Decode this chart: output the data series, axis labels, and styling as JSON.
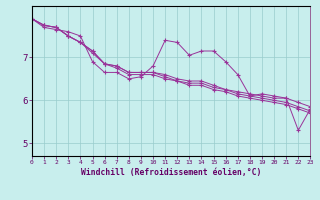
{
  "xlabel": "Windchill (Refroidissement éolien,°C)",
  "bg_color": "#c8eeed",
  "line_color": "#993399",
  "grid_color": "#99cccc",
  "axis_color": "#660066",
  "spine_color": "#996699",
  "x_ticks": [
    0,
    1,
    2,
    3,
    4,
    5,
    6,
    7,
    8,
    9,
    10,
    11,
    12,
    13,
    14,
    15,
    16,
    17,
    18,
    19,
    20,
    21,
    22,
    23
  ],
  "y_ticks": [
    5,
    6,
    7
  ],
  "xlim": [
    0,
    23
  ],
  "ylim": [
    4.7,
    8.2
  ],
  "series": [
    [
      7.9,
      7.7,
      7.65,
      7.6,
      7.5,
      6.9,
      6.65,
      6.65,
      6.5,
      6.55,
      6.8,
      7.4,
      7.35,
      7.05,
      7.15,
      7.15,
      6.9,
      6.6,
      6.1,
      6.15,
      6.1,
      6.05,
      5.3,
      5.8
    ],
    [
      7.9,
      7.75,
      7.7,
      7.5,
      7.35,
      7.15,
      6.85,
      6.8,
      6.65,
      6.65,
      6.65,
      6.6,
      6.5,
      6.45,
      6.45,
      6.35,
      6.25,
      6.2,
      6.15,
      6.1,
      6.05,
      6.05,
      5.95,
      5.85
    ],
    [
      7.9,
      7.75,
      7.7,
      7.5,
      7.35,
      7.15,
      6.85,
      6.8,
      6.65,
      6.65,
      6.65,
      6.55,
      6.45,
      6.4,
      6.4,
      6.3,
      6.25,
      6.15,
      6.1,
      6.05,
      6.0,
      5.95,
      5.85,
      5.75
    ],
    [
      7.9,
      7.75,
      7.7,
      7.5,
      7.35,
      7.1,
      6.85,
      6.75,
      6.6,
      6.6,
      6.6,
      6.5,
      6.45,
      6.35,
      6.35,
      6.25,
      6.2,
      6.1,
      6.05,
      6.0,
      5.95,
      5.9,
      5.8,
      5.7
    ]
  ]
}
